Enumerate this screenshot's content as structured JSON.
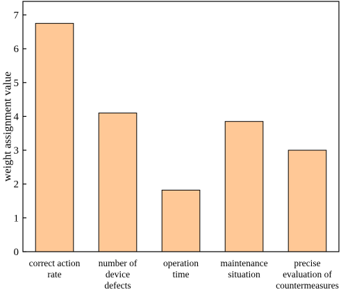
{
  "chart_data": {
    "type": "bar",
    "categories": [
      [
        "correct action",
        "rate"
      ],
      [
        "number of",
        "device",
        "defects"
      ],
      [
        "operation",
        "time"
      ],
      [
        "maintenance",
        "situation"
      ],
      [
        "precise",
        "evaluation of",
        "countermeasures"
      ]
    ],
    "values": [
      6.75,
      4.1,
      1.82,
      3.85,
      3.0
    ],
    "ylabel": "weight assignment value",
    "xlabel": "",
    "ylim": [
      0,
      7.4
    ],
    "yticks": [
      0,
      1,
      2,
      3,
      4,
      5,
      6,
      7
    ],
    "grid": false,
    "bar_color": "#FFC896",
    "edge_color": "#000000"
  }
}
